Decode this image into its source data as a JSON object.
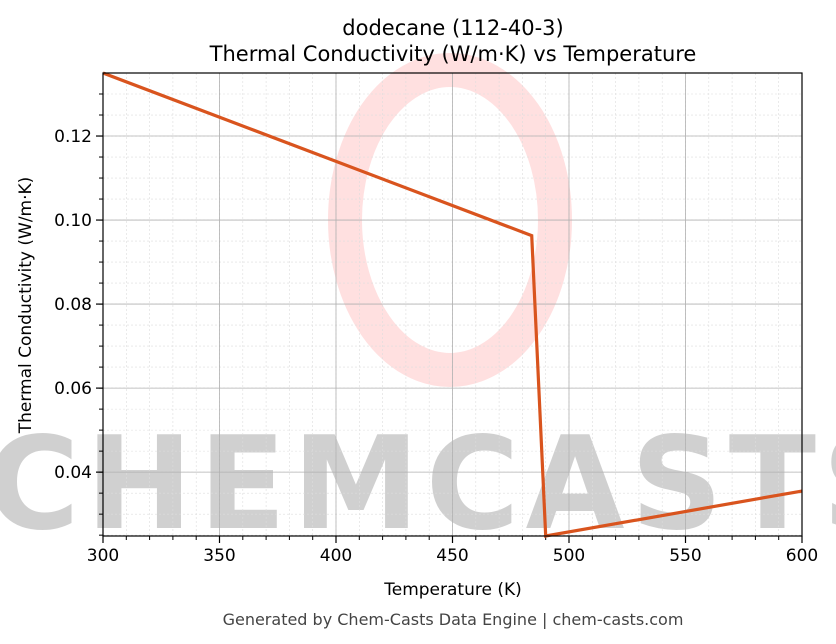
{
  "chart_data": {
    "type": "line",
    "title": "dodecane (112-40-3)",
    "subtitle": "Thermal Conductivity (W/m·K) vs Temperature",
    "xlabel": "Temperature (K)",
    "ylabel": "Thermal Conductivity (W/m·K)",
    "xlim": [
      300,
      600
    ],
    "ylim": [
      0.0248,
      0.135
    ],
    "xticks": [
      300,
      350,
      400,
      450,
      500,
      550,
      600
    ],
    "xtick_labels": [
      "300",
      "350",
      "400",
      "450",
      "500",
      "550",
      "600"
    ],
    "yticks": [
      0.04,
      0.06,
      0.08,
      0.1,
      0.12
    ],
    "ytick_labels": [
      "0.04",
      "0.06",
      "0.08",
      "0.10",
      "0.12"
    ],
    "grid": true,
    "color": "#d9541e",
    "series": [
      {
        "x": [
          300,
          484,
          490,
          600
        ],
        "y": [
          0.135,
          0.0963,
          0.0248,
          0.0355
        ]
      }
    ]
  },
  "watermark": "CHEMCASTS",
  "footer": "Generated by Chem-Casts Data Engine | chem-casts.com"
}
